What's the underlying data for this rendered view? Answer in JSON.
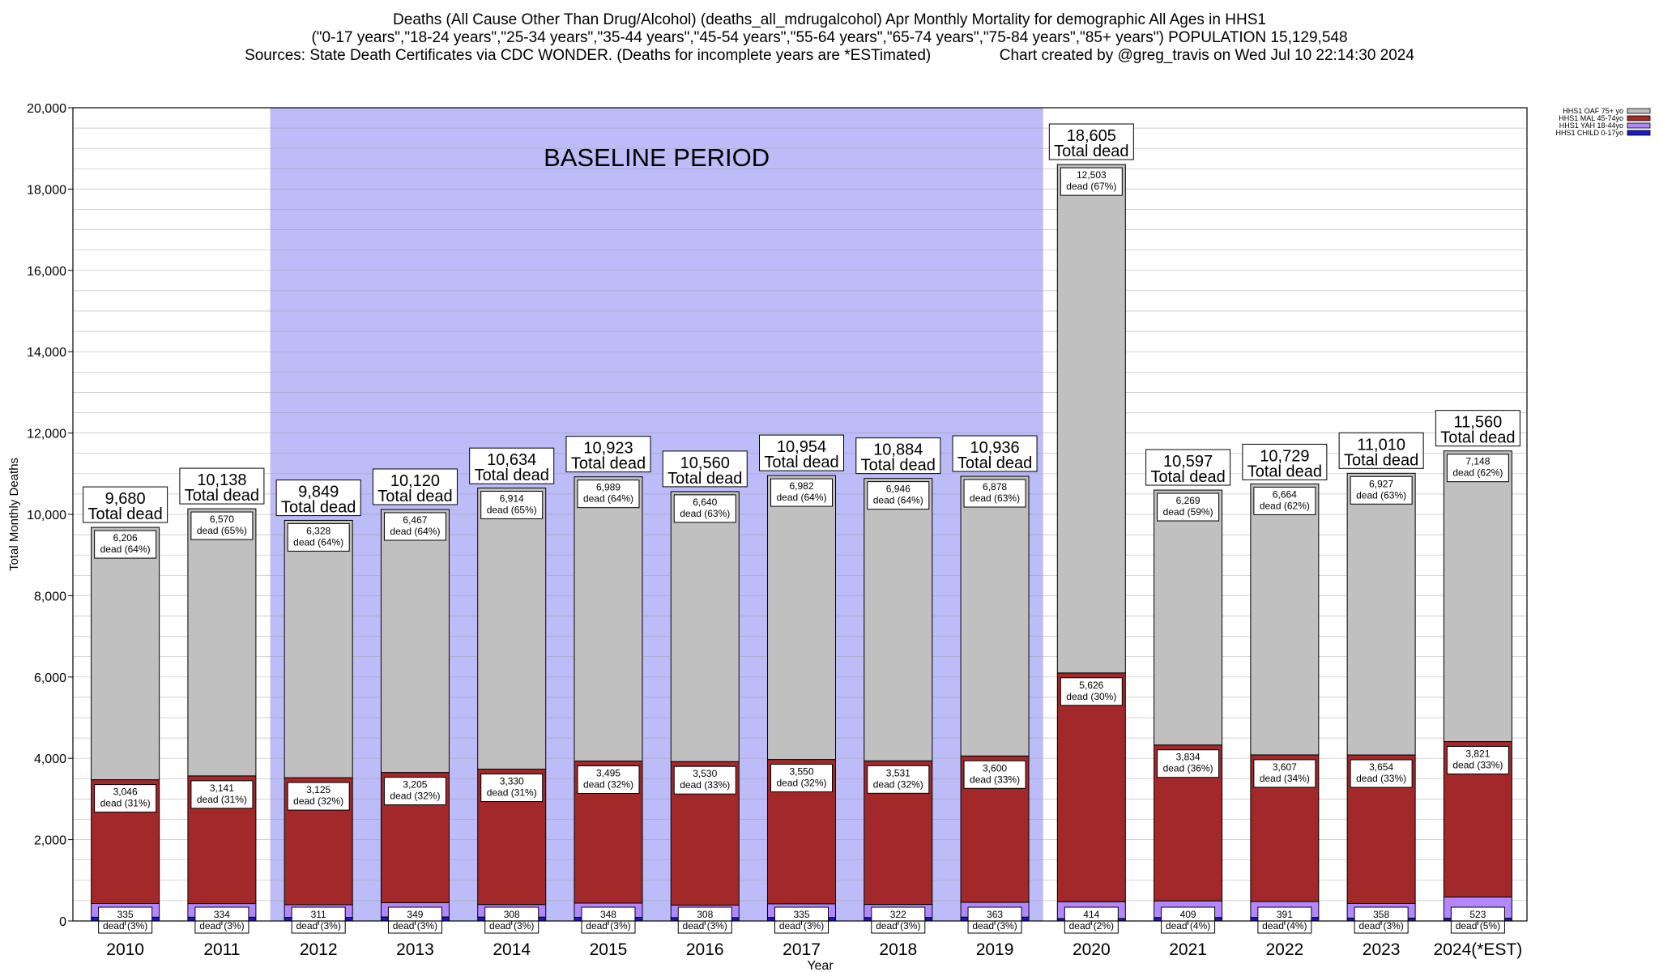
{
  "header": {
    "title_line1": "Deaths (All Cause Other Than Drug/Alcohol) (deaths_all_mdrugalcohol) Apr Monthly Mortality for demographic All Ages in HHS1",
    "title_line2": "(\"0-17 years\",\"18-24 years\",\"25-34 years\",\"35-44 years\",\"45-54 years\",\"55-64 years\",\"65-74 years\",\"75-84 years\",\"85+ years\") POPULATION 15,129,548",
    "title_line3_left": "Sources: State Death Certificates via CDC WONDER. (Deaths for incomplete years are *ESTimated)",
    "title_line3_right": "Chart created by @greg_travis on Wed Jul 10 22:14:30 2024"
  },
  "chart_data": {
    "type": "bar",
    "stacked": true,
    "title": "Deaths (All Cause Other Than Drug/Alcohol) (deaths_all_mdrugalcohol) Apr Monthly Mortality for demographic All Ages in HHS1",
    "xlabel": "Year",
    "ylabel": "Total Monthly Deaths",
    "ylim": [
      0,
      20000
    ],
    "yticks": [
      0,
      2000,
      4000,
      6000,
      8000,
      10000,
      12000,
      14000,
      16000,
      18000,
      20000
    ],
    "ytick_labels": [
      "0",
      "2,000",
      "4,000",
      "6,000",
      "8,000",
      "10,000",
      "12,000",
      "14,000",
      "16,000",
      "18,000",
      "20,000"
    ],
    "grid": true,
    "legend_position": "top-right",
    "categories": [
      "2010",
      "2011",
      "2012",
      "2013",
      "2014",
      "2015",
      "2016",
      "2017",
      "2018",
      "2019",
      "2020",
      "2021",
      "2022",
      "2023",
      "2024(*EST)"
    ],
    "totals": [
      9680,
      10138,
      9849,
      10120,
      10634,
      10923,
      10560,
      10954,
      10884,
      10936,
      18605,
      10597,
      10729,
      11010,
      11560
    ],
    "total_labels": [
      "9,680",
      "10,138",
      "9,849",
      "10,120",
      "10,634",
      "10,923",
      "10,560",
      "10,954",
      "10,884",
      "10,936",
      "18,605",
      "10,597",
      "10,729",
      "11,010",
      "11,560"
    ],
    "total_suffix": "Total dead",
    "series": [
      {
        "name": "HHS1 CHILD 0-17yo",
        "color": "#1a1acc",
        "values": [
          93,
          93,
          88,
          99,
          96,
          91,
          82,
          87,
          85,
          95,
          60,
          85,
          87,
          71,
          68
        ]
      },
      {
        "name": "HHS1 YAH 18-44yo",
        "color": "#b388ff",
        "values": [
          335,
          334,
          311,
          349,
          308,
          348,
          308,
          335,
          322,
          363,
          414,
          409,
          391,
          358,
          523
        ],
        "labels": [
          "335",
          "334",
          "311",
          "349",
          "308",
          "348",
          "308",
          "335",
          "322",
          "363",
          "414",
          "409",
          "391",
          "358",
          "523"
        ],
        "pct_labels": [
          "dead (3%)",
          "dead (3%)",
          "dead (3%)",
          "dead (3%)",
          "dead (3%)",
          "dead (3%)",
          "dead (3%)",
          "dead (3%)",
          "dead (3%)",
          "dead (3%)",
          "dead (2%)",
          "dead (4%)",
          "dead (4%)",
          "dead (3%)",
          "dead (5%)"
        ]
      },
      {
        "name": "HHS1 MAL 45-74yo",
        "color": "#a3282a",
        "values": [
          3046,
          3141,
          3125,
          3205,
          3330,
          3495,
          3530,
          3550,
          3531,
          3600,
          5626,
          3834,
          3607,
          3654,
          3821
        ],
        "labels": [
          "3,046",
          "3,141",
          "3,125",
          "3,205",
          "3,330",
          "3,495",
          "3,530",
          "3,550",
          "3,531",
          "3,600",
          "5,626",
          "3,834",
          "3,607",
          "3,654",
          "3,821"
        ],
        "pct_labels": [
          "dead (31%)",
          "dead (31%)",
          "dead (32%)",
          "dead (32%)",
          "dead (31%)",
          "dead (32%)",
          "dead (33%)",
          "dead (32%)",
          "dead (32%)",
          "dead (33%)",
          "dead (30%)",
          "dead (36%)",
          "dead (34%)",
          "dead (33%)",
          "dead (33%)"
        ]
      },
      {
        "name": "HHS1 OAF 75+ yo",
        "color": "#c0c0c0",
        "values": [
          6206,
          6570,
          6328,
          6467,
          6914,
          6989,
          6640,
          6982,
          6946,
          6878,
          12503,
          6269,
          6664,
          6927,
          7148
        ],
        "labels": [
          "6,206",
          "6,570",
          "6,328",
          "6,467",
          "6,914",
          "6,989",
          "6,640",
          "6,982",
          "6,946",
          "6,878",
          "12,503",
          "6,269",
          "6,664",
          "6,927",
          "7,148"
        ],
        "pct_labels": [
          "dead (64%)",
          "dead (65%)",
          "dead (64%)",
          "dead (64%)",
          "dead (65%)",
          "dead (64%)",
          "dead (63%)",
          "dead (64%)",
          "dead (64%)",
          "dead (63%)",
          "dead (67%)",
          "dead (59%)",
          "dead (62%)",
          "dead (63%)",
          "dead (62%)"
        ]
      }
    ],
    "annotations": [
      {
        "text": "BASELINE PERIOD",
        "span": [
          "2012",
          "2019"
        ],
        "color": "#bcbcf8"
      }
    ]
  }
}
